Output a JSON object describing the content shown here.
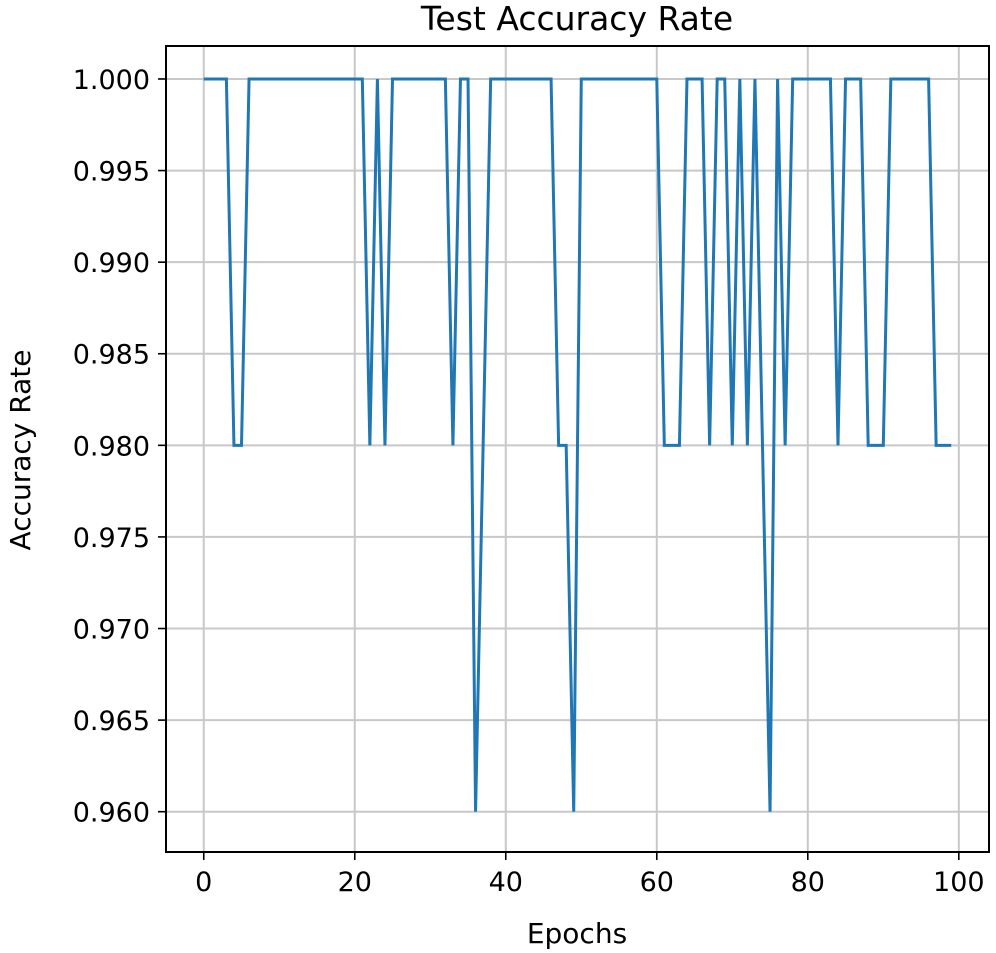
{
  "chart_data": {
    "type": "line",
    "title": "Test Accuracy Rate",
    "xlabel": "Epochs",
    "ylabel": "Accuracy Rate",
    "xlim": [
      -5,
      104
    ],
    "ylim": [
      0.9578,
      1.0018
    ],
    "grid": true,
    "xticks": [
      0,
      20,
      40,
      60,
      80,
      100
    ],
    "xtick_labels": [
      "0",
      "20",
      "40",
      "60",
      "80",
      "100"
    ],
    "yticks": [
      0.96,
      0.965,
      0.97,
      0.975,
      0.98,
      0.985,
      0.99,
      0.995,
      1.0
    ],
    "ytick_labels": [
      "0.960",
      "0.965",
      "0.970",
      "0.975",
      "0.980",
      "0.985",
      "0.990",
      "0.995",
      "1.000"
    ],
    "line_color": "#1f77b4",
    "series": [
      {
        "x": [
          0,
          1,
          2,
          3,
          4,
          5,
          6,
          7,
          8,
          9,
          10,
          11,
          12,
          13,
          14,
          15,
          16,
          17,
          18,
          19,
          20,
          21,
          22,
          23,
          24,
          25,
          26,
          27,
          28,
          29,
          30,
          31,
          32,
          33,
          34,
          35,
          36,
          37,
          38,
          39,
          40,
          41,
          42,
          43,
          44,
          45,
          46,
          47,
          48,
          49,
          50,
          51,
          52,
          53,
          54,
          55,
          56,
          57,
          58,
          59,
          60,
          61,
          62,
          63,
          64,
          65,
          66,
          67,
          68,
          69,
          70,
          71,
          72,
          73,
          74,
          75,
          76,
          77,
          78,
          79,
          80,
          81,
          82,
          83,
          84,
          85,
          86,
          87,
          88,
          89,
          90,
          91,
          92,
          93,
          94,
          95,
          96,
          97,
          98,
          99
        ],
        "y": [
          1.0,
          1.0,
          1.0,
          1.0,
          0.98,
          0.98,
          1.0,
          1.0,
          1.0,
          1.0,
          1.0,
          1.0,
          1.0,
          1.0,
          1.0,
          1.0,
          1.0,
          1.0,
          1.0,
          1.0,
          1.0,
          1.0,
          0.98,
          1.0,
          0.98,
          1.0,
          1.0,
          1.0,
          1.0,
          1.0,
          1.0,
          1.0,
          1.0,
          0.98,
          1.0,
          1.0,
          0.96,
          0.98,
          1.0,
          1.0,
          1.0,
          1.0,
          1.0,
          1.0,
          1.0,
          1.0,
          1.0,
          0.98,
          0.98,
          0.96,
          1.0,
          1.0,
          1.0,
          1.0,
          1.0,
          1.0,
          1.0,
          1.0,
          1.0,
          1.0,
          1.0,
          0.98,
          0.98,
          0.98,
          1.0,
          1.0,
          1.0,
          0.98,
          1.0,
          1.0,
          0.98,
          1.0,
          0.98,
          1.0,
          0.98,
          0.96,
          1.0,
          0.98,
          1.0,
          1.0,
          1.0,
          1.0,
          1.0,
          1.0,
          0.98,
          1.0,
          1.0,
          1.0,
          0.98,
          0.98,
          0.98,
          1.0,
          1.0,
          1.0,
          1.0,
          1.0,
          1.0,
          0.98,
          0.98,
          0.98
        ]
      }
    ]
  }
}
